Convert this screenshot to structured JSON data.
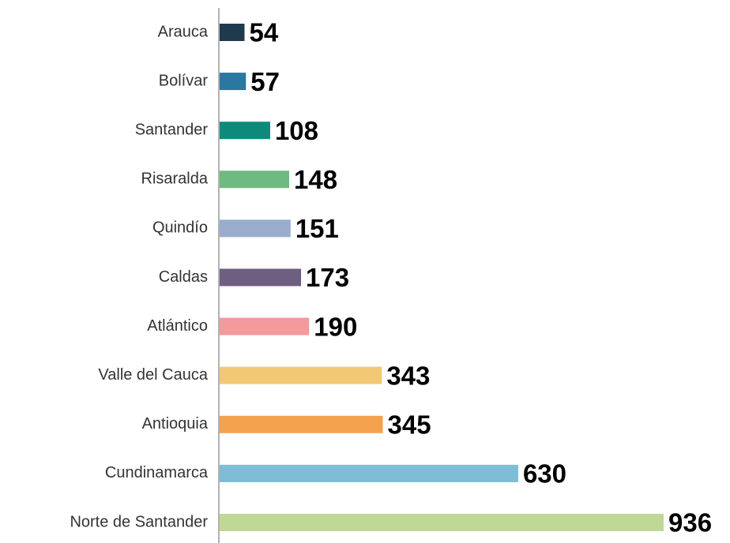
{
  "chart_data": {
    "type": "bar",
    "orientation": "horizontal",
    "categories": [
      "Arauca",
      "Bolívar",
      "Santander",
      "Risaralda",
      "Quindío",
      "Caldas",
      "Atlántico",
      "Valle del Cauca",
      "Antioquia",
      "Cundinamarca",
      "Norte de Santander"
    ],
    "values": [
      54,
      57,
      108,
      148,
      151,
      173,
      190,
      343,
      345,
      630,
      936
    ],
    "colors": [
      "#1f3a4d",
      "#2878a0",
      "#0d8a7a",
      "#6dbb80",
      "#9aaccc",
      "#6e5e80",
      "#f29a9c",
      "#f2c875",
      "#f4a24e",
      "#7fbcd6",
      "#bfd896"
    ]
  }
}
